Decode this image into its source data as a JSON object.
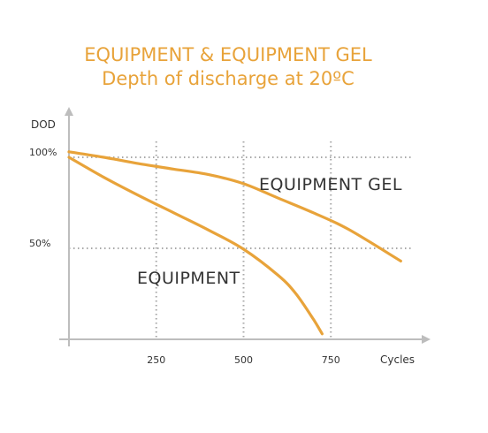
{
  "chart_data": {
    "type": "line",
    "title": "EQUIPMENT & EQUIPMENT GEL",
    "subtitle": "Depth of discharge at 20ºC",
    "xlabel": "Cycles",
    "ylabel": "DOD",
    "xlim": [
      0,
      1000
    ],
    "ylim": [
      0,
      110
    ],
    "x_ticks": [
      {
        "value": 250,
        "label": "250"
      },
      {
        "value": 500,
        "label": "500"
      },
      {
        "value": 750,
        "label": "750"
      }
    ],
    "y_ticks": [
      {
        "value": 100,
        "label": "100%"
      },
      {
        "value": 50,
        "label": "50%"
      }
    ],
    "grid": "dotted, at ticks",
    "colors": {
      "series": "#E8A33A",
      "axis": "#bdbdbd",
      "grid": "#a8a8a8"
    },
    "series": [
      {
        "name": "EQUIPMENT GEL",
        "x": [
          0,
          100,
          200,
          300,
          400,
          500,
          600,
          700,
          800,
          950
        ],
        "y": [
          103,
          100,
          96.5,
          93.5,
          90.5,
          85.5,
          77.5,
          69.5,
          60.5,
          43
        ]
      },
      {
        "name": "EQUIPMENT",
        "x": [
          0,
          100,
          200,
          300,
          400,
          500,
          600,
          650,
          700,
          725
        ],
        "y": [
          100,
          89,
          79,
          69.5,
          60,
          49.5,
          35,
          25,
          11,
          3
        ]
      }
    ]
  }
}
